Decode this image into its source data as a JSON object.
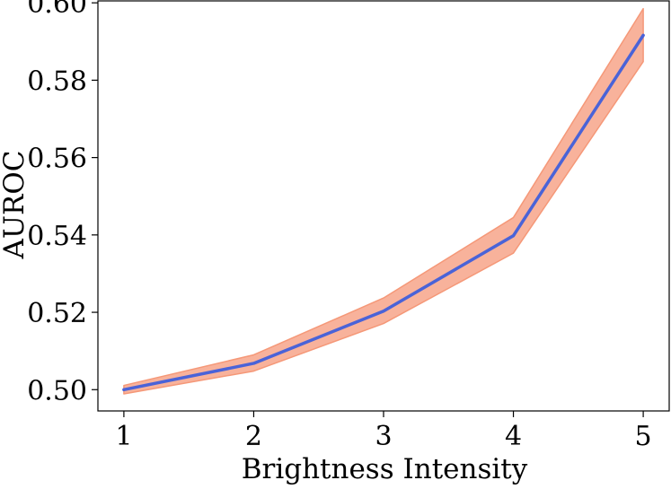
{
  "chart_data": {
    "type": "line",
    "title": "",
    "xlabel": "Brightness Intensity",
    "ylabel": "AUROC",
    "x": [
      1,
      2,
      3,
      4,
      5
    ],
    "series": [
      {
        "values": [
          0.5,
          0.5068,
          0.5203,
          0.5398,
          0.5916
        ],
        "lower": [
          0.4989,
          0.5048,
          0.5171,
          0.5353,
          0.5848
        ],
        "upper": [
          0.5011,
          0.509,
          0.5237,
          0.5445,
          0.5985
        ]
      }
    ],
    "x_ticks": [
      "1",
      "2",
      "3",
      "4",
      "5"
    ],
    "y_ticks": [
      "0.50",
      "0.52",
      "0.54",
      "0.56",
      "0.58",
      "0.60"
    ],
    "xlim": [
      0.8,
      5.2
    ],
    "ylim": [
      0.4945,
      0.6005
    ],
    "grid": false,
    "colors": {
      "line": "#4a63d8",
      "band": "#f7a58a",
      "band_edge": "#f59878",
      "axes": "#000000"
    }
  }
}
